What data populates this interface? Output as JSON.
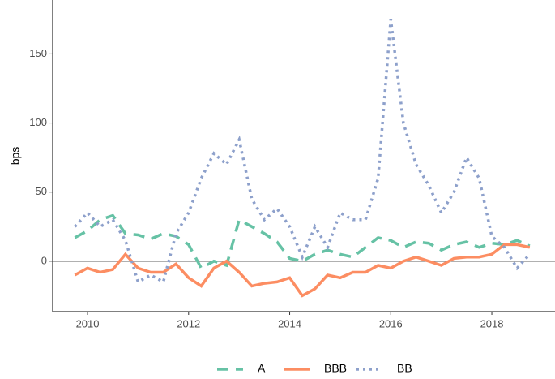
{
  "chart_data": {
    "type": "line",
    "y_label": "bps",
    "x": [
      2009.75,
      2010.0,
      2010.25,
      2010.5,
      2010.75,
      2011.0,
      2011.25,
      2011.5,
      2011.75,
      2012.0,
      2012.25,
      2012.5,
      2012.75,
      2013.0,
      2013.25,
      2013.5,
      2013.75,
      2014.0,
      2014.25,
      2014.5,
      2014.75,
      2015.0,
      2015.25,
      2015.5,
      2015.75,
      2016.0,
      2016.25,
      2016.5,
      2016.75,
      2017.0,
      2017.25,
      2017.5,
      2017.75,
      2018.0,
      2018.25,
      2018.5,
      2018.75
    ],
    "series": [
      {
        "name": "A",
        "color": "#66c2a5",
        "dash": "dashed",
        "values": [
          17,
          22,
          30,
          33,
          20,
          19,
          16,
          20,
          18,
          12,
          -5,
          0,
          -3,
          30,
          25,
          20,
          14,
          2,
          0,
          5,
          8,
          5,
          3,
          10,
          17,
          15,
          10,
          14,
          13,
          8,
          12,
          14,
          10,
          13,
          12,
          15,
          11
        ]
      },
      {
        "name": "BBB",
        "color": "#fc8d62",
        "dash": "solid",
        "values": [
          -10,
          -5,
          -8,
          -6,
          5,
          -5,
          -8,
          -8,
          -2,
          -12,
          -18,
          -5,
          0,
          -8,
          -18,
          -16,
          -15,
          -12,
          -25,
          -20,
          -10,
          -12,
          -8,
          -8,
          -3,
          -5,
          0,
          3,
          0,
          -3,
          2,
          3,
          3,
          5,
          12,
          12,
          10
        ]
      },
      {
        "name": "BB",
        "color": "#8da0cb",
        "dash": "dotted",
        "values": [
          25,
          35,
          25,
          30,
          15,
          -15,
          -10,
          -15,
          20,
          35,
          60,
          78,
          70,
          88,
          45,
          30,
          38,
          25,
          3,
          25,
          10,
          35,
          30,
          30,
          60,
          175,
          100,
          70,
          55,
          35,
          50,
          75,
          60,
          18,
          10,
          -5,
          5
        ]
      }
    ],
    "xlim": [
      2009.31,
      2019.25
    ],
    "xticks": [
      2010,
      2012,
      2014,
      2016,
      2018
    ],
    "ylim": [
      -36.5,
      189
    ],
    "yticks": [
      0,
      50,
      100,
      150
    ],
    "hline": 0,
    "legend": "bottom",
    "grid": false
  }
}
